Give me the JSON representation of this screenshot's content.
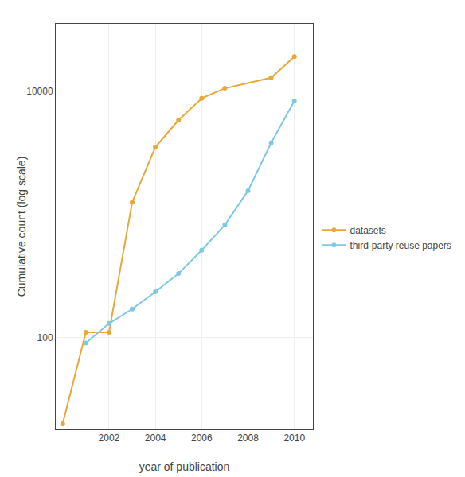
{
  "chart_data": {
    "type": "line",
    "xlabel": "year of publication",
    "ylabel": "Cumulative count (log scale)",
    "series": [
      {
        "name": "datasets",
        "color": "#E8A838",
        "marker": "circle",
        "x": [
          2000,
          2001,
          2002,
          2003,
          2004,
          2005,
          2006,
          2007,
          2009,
          2010
        ],
        "values": [
          20,
          110,
          110,
          1250,
          3500,
          5800,
          8700,
          10500,
          12800,
          19000
        ]
      },
      {
        "name": "third-party reuse papers",
        "color": "#7EC8E3",
        "marker": "circle",
        "x": [
          2001,
          2002,
          2003,
          2004,
          2005,
          2006,
          2007,
          2008,
          2009,
          2010
        ],
        "values": [
          90,
          130,
          170,
          235,
          330,
          510,
          820,
          1550,
          3800,
          8300
        ]
      }
    ],
    "xlim": [
      1999.7,
      2010.8
    ],
    "xticks": [
      2002,
      2004,
      2006,
      2008,
      2010
    ],
    "ylim": [
      18,
      35000
    ],
    "yticks": [
      100,
      10000
    ],
    "log": "y",
    "grid": true
  }
}
